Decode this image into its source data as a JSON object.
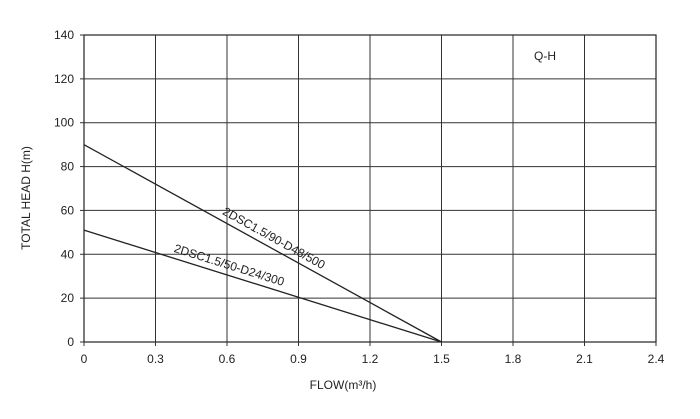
{
  "chart_data": {
    "type": "line",
    "title": "",
    "legend_text": "Q-H",
    "legend_placement": "top-right",
    "xlabel": "FLOW(m³/h)",
    "ylabel": "TOTAL HEAD H(m)",
    "xlim": [
      0,
      2.4
    ],
    "ylim": [
      0,
      140
    ],
    "grid": true,
    "x_ticks": [
      0,
      0.3,
      0.6,
      0.9,
      1.2,
      1.5,
      1.8,
      2.1,
      2.4
    ],
    "x_tick_labels": [
      "0",
      "0.3",
      "0.6",
      "0.9",
      "1.2",
      "1.5",
      "1.8",
      "2.1",
      "2.4"
    ],
    "y_ticks": [
      0,
      20,
      40,
      60,
      80,
      100,
      120,
      140
    ],
    "y_tick_labels": [
      "0",
      "20",
      "40",
      "60",
      "80",
      "100",
      "120",
      "140"
    ],
    "series": [
      {
        "name": "2DSC1.5/90-D48/500",
        "x": [
          0,
          1.5
        ],
        "y": [
          90,
          0
        ],
        "color": "#222222"
      },
      {
        "name": "2DSC1.5/50-D24/300",
        "x": [
          0,
          1.5
        ],
        "y": [
          51,
          0
        ],
        "color": "#222222"
      }
    ]
  }
}
